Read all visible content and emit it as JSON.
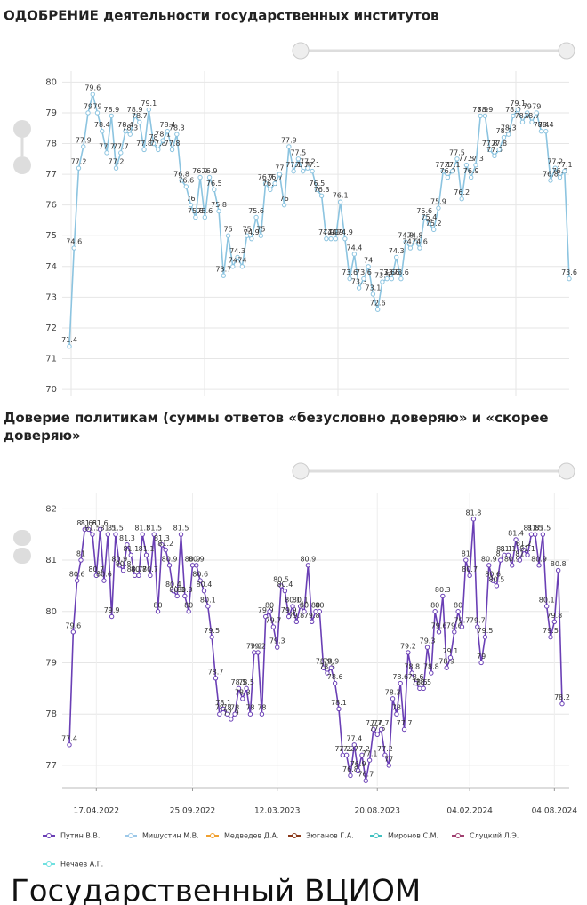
{
  "chart_data": [
    {
      "type": "line",
      "title": "ОДОБРЕНИЕ деятельности государственных институтов",
      "color": "#8cc4e0",
      "values": [
        71.4,
        74.6,
        77.2,
        77.9,
        79,
        79.6,
        79,
        78.4,
        77.7,
        78.9,
        77.2,
        77.7,
        78.4,
        78.3,
        78.9,
        78.7,
        77.8,
        79.1,
        78,
        77.8,
        78.1,
        78.4,
        77.8,
        78.3,
        76.8,
        76.6,
        76,
        75.6,
        76.9,
        75.6,
        76.9,
        76.5,
        75.8,
        73.7,
        75,
        74,
        74.3,
        74,
        75,
        74.9,
        75.6,
        75,
        76.7,
        76.5,
        76.7,
        77,
        76,
        77.9,
        77.1,
        77.5,
        77.1,
        77.2,
        77.1,
        76.5,
        76.3,
        74.9,
        74.9,
        74.9,
        76.1,
        74.9,
        73.6,
        74.4,
        73.3,
        73.6,
        74,
        73.1,
        72.6,
        73.5,
        73.6,
        73.6,
        74.3,
        73.6,
        74.8,
        74.6,
        74.8,
        74.6,
        75.6,
        75.4,
        75.2,
        75.9,
        77.1,
        76.9,
        77.1,
        77.5,
        76.2,
        77.3,
        76.9,
        77.3,
        78.9,
        78.9,
        77.8,
        77.6,
        77.8,
        78.2,
        78.3,
        78.9,
        79.1,
        78.7,
        79,
        78.7,
        79,
        78.4,
        78.4,
        76.8,
        77.2,
        76.9,
        77.1,
        73.6
      ],
      "ylim": [
        69.8,
        80.3
      ],
      "yticks": [
        70,
        71,
        72,
        73,
        74,
        75,
        76,
        77,
        78,
        79,
        80
      ],
      "grid": true
    },
    {
      "type": "line",
      "title": "Доверие политикам (суммы ответов «безусловно доверяю» и «скорее доверяю»",
      "series": [
        {
          "name": "Путин В.В.",
          "color": "#6a3fb5",
          "values": [
            77.4,
            79.6,
            80.6,
            81,
            81.6,
            81.6,
            81.5,
            80.7,
            81.6,
            80.6,
            81.5,
            79.9,
            81.5,
            80.9,
            80.8,
            81.3,
            81.1,
            80.7,
            80.7,
            81.5,
            81.1,
            80.7,
            81.5,
            80,
            81.3,
            81.2,
            80.9,
            80.4,
            80.3,
            81.5,
            80.3,
            80,
            80.9,
            80.9,
            80.6,
            80.4,
            80.1,
            79.5,
            78.7,
            78,
            78.1,
            78,
            77.9,
            78,
            78.5,
            78.3,
            78.5,
            78,
            79.2,
            79.2,
            78,
            79.9,
            80,
            79.7,
            79.3,
            80.5,
            80.4,
            79.9,
            80.1,
            79.8,
            80.1,
            80,
            80.9,
            79.8,
            80,
            80,
            78.9,
            78.8,
            78.9,
            78.6,
            78.1,
            77.2,
            77.2,
            76.8,
            77.4,
            76.9,
            77.2,
            76.7,
            77.1,
            77.7,
            77.6,
            77.7,
            77.2,
            77,
            78.3,
            78,
            78.6,
            77.7,
            79.2,
            78.8,
            78.6,
            78.5,
            78.5,
            79.3,
            78.8,
            80,
            79.6,
            80.3,
            78.9,
            79.1,
            79.6,
            80,
            79.7,
            81,
            80.7,
            81.8,
            79.7,
            79,
            79.5,
            80.9,
            80.6,
            80.5,
            81,
            81.1,
            81.1,
            80.9,
            81.4,
            81,
            81.2,
            81.1,
            81.5,
            81.5,
            80.9,
            81.5,
            80.1,
            79.5,
            79.8,
            80.8,
            78.2
          ]
        }
      ],
      "other_series": [
        {
          "name": "Мишустин М.В.",
          "color": "#9cc8e8"
        },
        {
          "name": "Медведев Д.А.",
          "color": "#f0a030"
        },
        {
          "name": "Зюганов Г.А.",
          "color": "#8b3a1a"
        },
        {
          "name": "Миронов С.М.",
          "color": "#40c0c0"
        },
        {
          "name": "Слуцкий Л.Э.",
          "color": "#a04070"
        },
        {
          "name": "Нечаев А.Г.",
          "color": "#70e0e0"
        }
      ],
      "xlim": [
        0,
        128
      ],
      "xticks": [
        {
          "value": 7,
          "label": "17.04.2022"
        },
        {
          "value": 32,
          "label": "25.09.2022"
        },
        {
          "value": 54,
          "label": "12.03.2023"
        },
        {
          "value": 80,
          "label": "20.08.2023"
        },
        {
          "value": 104,
          "label": "04.02.2024"
        },
        {
          "value": 126,
          "label": "04.08.2024"
        }
      ],
      "ylim": [
        76.6,
        82.3
      ],
      "yticks": [
        77,
        78,
        79,
        80,
        81,
        82
      ],
      "grid": true
    }
  ],
  "footer": "Государственный ВЦИОМ"
}
